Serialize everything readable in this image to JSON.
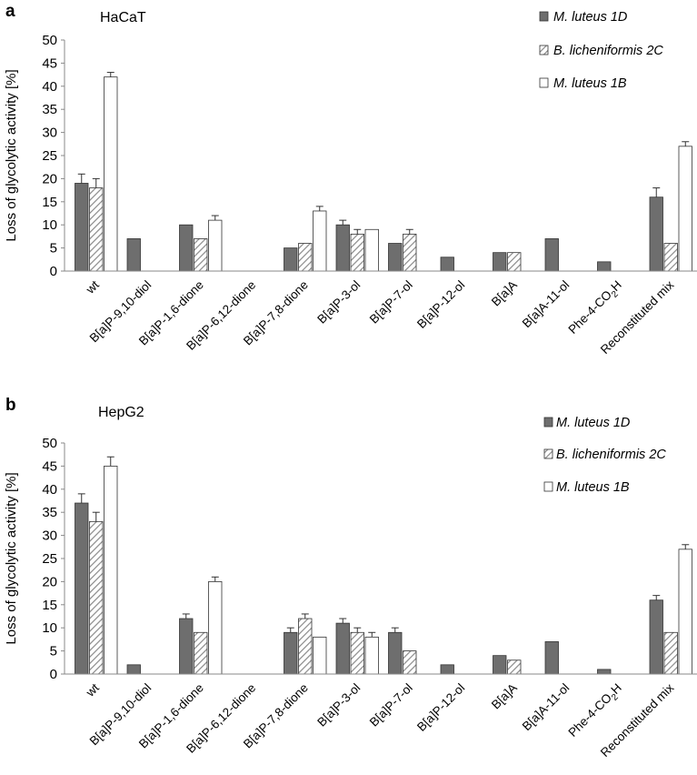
{
  "colors": {
    "dark": "#6e6e6e",
    "hatch": "#9a9a9a",
    "outline": "#333333",
    "axis": "#888888"
  },
  "chart_data": [
    {
      "type": "bar",
      "panel": "a",
      "title": "HaCaT",
      "ylabel": "Loss of glycolytic activity [%]",
      "ylim": [
        0,
        50
      ],
      "yticks": [
        "0",
        "5",
        "10",
        "15",
        "20",
        "25",
        "30",
        "35",
        "40",
        "45",
        "50"
      ],
      "categories": [
        {
          "main": "wt",
          "sub": "",
          "tail": ""
        },
        {
          "main": "B[a]P-9,10-diol",
          "sub": "",
          "tail": ""
        },
        {
          "main": "B[a]P-1,6-dione",
          "sub": "",
          "tail": ""
        },
        {
          "main": "B[a]P-6,12-dione",
          "sub": "",
          "tail": ""
        },
        {
          "main": "B[a]P-7,8-dione",
          "sub": "",
          "tail": ""
        },
        {
          "main": "B[a]P-3-ol",
          "sub": "",
          "tail": ""
        },
        {
          "main": "B[a]P-7-ol",
          "sub": "",
          "tail": ""
        },
        {
          "main": "B[a]P-12-ol",
          "sub": "",
          "tail": ""
        },
        {
          "main": "B[a]A",
          "sub": "",
          "tail": ""
        },
        {
          "main": "B[a]A-11-ol",
          "sub": "",
          "tail": ""
        },
        {
          "main": "Phe-4-CO",
          "sub": "2",
          "tail": "H"
        },
        {
          "main": "Reconstituted mix",
          "sub": "",
          "tail": ""
        }
      ],
      "series": [
        {
          "name": "M. luteus 1D",
          "style": "dark",
          "values": [
            19,
            7,
            10,
            null,
            5,
            10,
            6,
            3,
            4,
            7,
            2,
            16
          ],
          "errors": [
            2,
            0,
            0,
            0,
            0,
            1,
            0,
            0,
            0,
            0,
            0,
            2
          ]
        },
        {
          "name": "B. licheniformis 2C",
          "style": "hatch",
          "values": [
            18,
            null,
            7,
            null,
            6,
            8,
            8,
            null,
            4,
            null,
            null,
            6
          ],
          "errors": [
            2,
            0,
            0,
            0,
            0,
            1,
            1,
            0,
            0,
            0,
            0,
            0
          ]
        },
        {
          "name": "M. luteus 1B",
          "style": "open",
          "values": [
            42,
            null,
            11,
            null,
            13,
            9,
            null,
            null,
            null,
            null,
            null,
            27
          ],
          "errors": [
            1,
            0,
            1,
            0,
            1,
            0,
            0,
            0,
            0,
            0,
            0,
            1
          ]
        }
      ]
    },
    {
      "type": "bar",
      "panel": "b",
      "title": "HepG2",
      "ylabel": "Loss of glycolytic activity [%]",
      "ylim": [
        0,
        50
      ],
      "yticks": [
        "0",
        "5",
        "10",
        "15",
        "20",
        "25",
        "30",
        "35",
        "40",
        "45",
        "50"
      ],
      "categories": [
        {
          "main": "wt",
          "sub": "",
          "tail": ""
        },
        {
          "main": "B[a]P-9,10-diol",
          "sub": "",
          "tail": ""
        },
        {
          "main": "B[a]P-1,6-dione",
          "sub": "",
          "tail": ""
        },
        {
          "main": "B[a]P-6,12-dione",
          "sub": "",
          "tail": ""
        },
        {
          "main": "B[a]P-7,8-dione",
          "sub": "",
          "tail": ""
        },
        {
          "main": "B[a]P-3-ol",
          "sub": "",
          "tail": ""
        },
        {
          "main": "B[a]P-7-ol",
          "sub": "",
          "tail": ""
        },
        {
          "main": "B[a]P-12-ol",
          "sub": "",
          "tail": ""
        },
        {
          "main": "B[a]A",
          "sub": "",
          "tail": ""
        },
        {
          "main": "B[a]A-11-ol",
          "sub": "",
          "tail": ""
        },
        {
          "main": "Phe-4-CO",
          "sub": "2",
          "tail": "H"
        },
        {
          "main": "Reconstituted mix",
          "sub": "",
          "tail": ""
        }
      ],
      "series": [
        {
          "name": "M. luteus 1D",
          "style": "dark",
          "values": [
            37,
            2,
            12,
            null,
            9,
            11,
            9,
            2,
            4,
            7,
            1,
            16
          ],
          "errors": [
            2,
            0,
            1,
            0,
            1,
            1,
            1,
            0,
            0,
            0,
            0,
            1
          ]
        },
        {
          "name": "B. licheniformis 2C",
          "style": "hatch",
          "values": [
            33,
            null,
            9,
            null,
            12,
            9,
            5,
            null,
            3,
            null,
            null,
            9
          ],
          "errors": [
            2,
            0,
            0,
            0,
            1,
            1,
            0,
            0,
            0,
            0,
            0,
            0
          ]
        },
        {
          "name": "M. luteus 1B",
          "style": "open",
          "values": [
            45,
            null,
            20,
            null,
            8,
            8,
            null,
            null,
            null,
            null,
            null,
            27
          ],
          "errors": [
            2,
            0,
            1,
            0,
            0,
            1,
            0,
            0,
            0,
            0,
            0,
            1
          ]
        }
      ]
    }
  ]
}
